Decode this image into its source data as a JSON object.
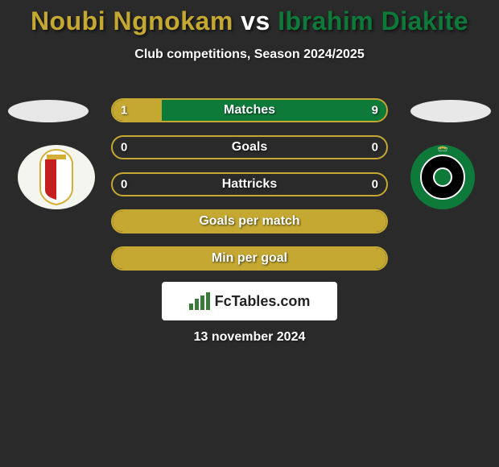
{
  "title": {
    "player1": "Noubi Ngnokam",
    "vs": "vs",
    "player2": "Ibrahim Diakite",
    "color1": "#c4a832",
    "vs_color": "#ffffff",
    "color2": "#0d7a3a"
  },
  "subtitle": "Club competitions, Season 2024/2025",
  "badges": {
    "left": {
      "bg": "#f5f5f0",
      "accent": "#d4af37",
      "accent2": "#c41e1e"
    },
    "right": {
      "bg": "#0d7a3a",
      "inner": "#000000",
      "ring": "#ffffff"
    }
  },
  "stats": {
    "border_color1": "#c4a832",
    "border_color2": "#0d7a3a",
    "fill_color1": "#c4a832",
    "fill_color2": "#0d7a3a",
    "rows": [
      {
        "label": "Matches",
        "left": "1",
        "right": "9",
        "left_pct": 18,
        "right_pct": 82,
        "show_values": true
      },
      {
        "label": "Goals",
        "left": "0",
        "right": "0",
        "left_pct": 0,
        "right_pct": 0,
        "show_values": true
      },
      {
        "label": "Hattricks",
        "left": "0",
        "right": "0",
        "left_pct": 0,
        "right_pct": 0,
        "show_values": true
      },
      {
        "label": "Goals per match",
        "left": "",
        "right": "",
        "left_pct": 100,
        "right_pct": 0,
        "show_values": false,
        "full_fill": true
      },
      {
        "label": "Min per goal",
        "left": "",
        "right": "",
        "left_pct": 100,
        "right_pct": 0,
        "show_values": false,
        "full_fill": true
      }
    ]
  },
  "logo": {
    "text": "FcTables.com",
    "icon_color": "#3a7a3a"
  },
  "date": "13 november 2024"
}
